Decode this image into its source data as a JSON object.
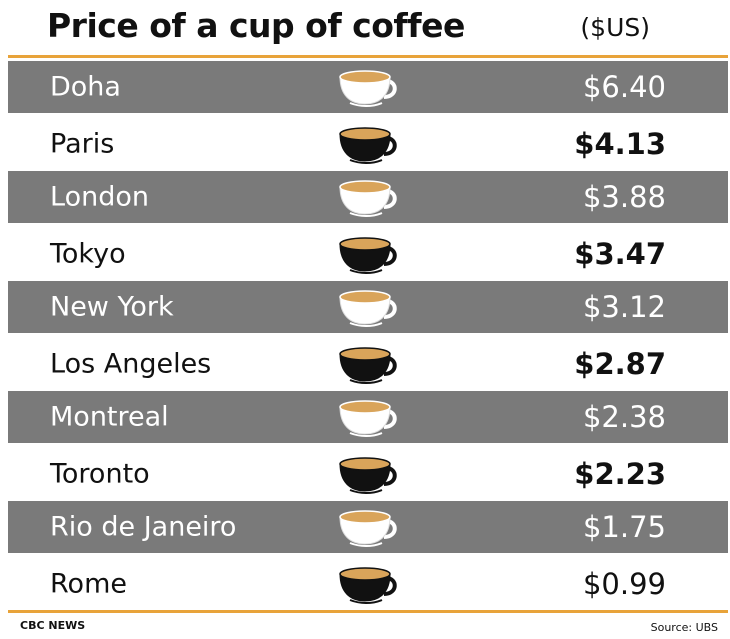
{
  "header": {
    "title": "Price of a cup of coffee",
    "unit": "($US)"
  },
  "footer": {
    "brand": "CBC NEWS",
    "source": "Source: UBS"
  },
  "colors": {
    "accent": "#e8a33a",
    "shaded_row": "#7a7a7a",
    "coffee": "#d9a45a",
    "cup_light": "#ffffff",
    "cup_dark": "#111111"
  },
  "chart_data": {
    "type": "table",
    "columns": [
      "city",
      "price_usd"
    ],
    "rows": [
      {
        "city": "Doha",
        "price": 6.4,
        "label": "$6.40",
        "shaded": true,
        "cup": "light",
        "bold": false
      },
      {
        "city": "Paris",
        "price": 4.13,
        "label": "$4.13",
        "shaded": false,
        "cup": "dark",
        "bold": true
      },
      {
        "city": "London",
        "price": 3.88,
        "label": "$3.88",
        "shaded": true,
        "cup": "light",
        "bold": false
      },
      {
        "city": "Tokyo",
        "price": 3.47,
        "label": "$3.47",
        "shaded": false,
        "cup": "dark",
        "bold": true
      },
      {
        "city": "New York",
        "price": 3.12,
        "label": "$3.12",
        "shaded": true,
        "cup": "light",
        "bold": false
      },
      {
        "city": "Los Angeles",
        "price": 2.87,
        "label": "$2.87",
        "shaded": false,
        "cup": "dark",
        "bold": true
      },
      {
        "city": "Montreal",
        "price": 2.38,
        "label": "$2.38",
        "shaded": true,
        "cup": "light",
        "bold": false
      },
      {
        "city": "Toronto",
        "price": 2.23,
        "label": "$2.23",
        "shaded": false,
        "cup": "dark",
        "bold": true
      },
      {
        "city": "Rio de Janeiro",
        "price": 1.75,
        "label": "$1.75",
        "shaded": true,
        "cup": "light",
        "bold": false
      },
      {
        "city": "Rome",
        "price": 0.99,
        "label": "$0.99",
        "shaded": false,
        "cup": "dark",
        "bold": false
      }
    ]
  }
}
